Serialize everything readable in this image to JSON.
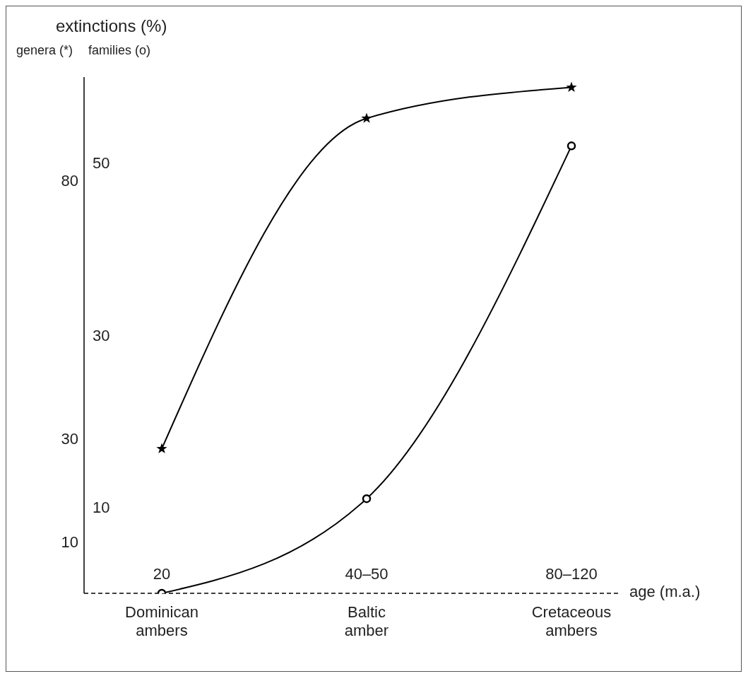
{
  "chart_data": {
    "type": "line",
    "title": "extinctions (%)",
    "ylabel": "genera (*)",
    "y2label": "families (o)",
    "xlabel": "age (m.a.)",
    "categories": [
      "Dominican ambers",
      "Baltic amber",
      "Cretaceous ambers"
    ],
    "series": [
      {
        "color": "#000000",
        "marker": "star",
        "values": [
          28,
          92,
          98
        ]
      },
      {
        "color": "#000000",
        "marker": "circle",
        "axis": "y2",
        "values": [
          0,
          11,
          52
        ]
      }
    ],
    "ylim": [
      0,
      100
    ],
    "yticks": [
      10,
      30,
      80
    ],
    "y2lim": [
      0,
      60
    ],
    "y2ticks": [
      10,
      30,
      50
    ],
    "annotations": [
      "20",
      "40–50",
      "80–120"
    ]
  }
}
